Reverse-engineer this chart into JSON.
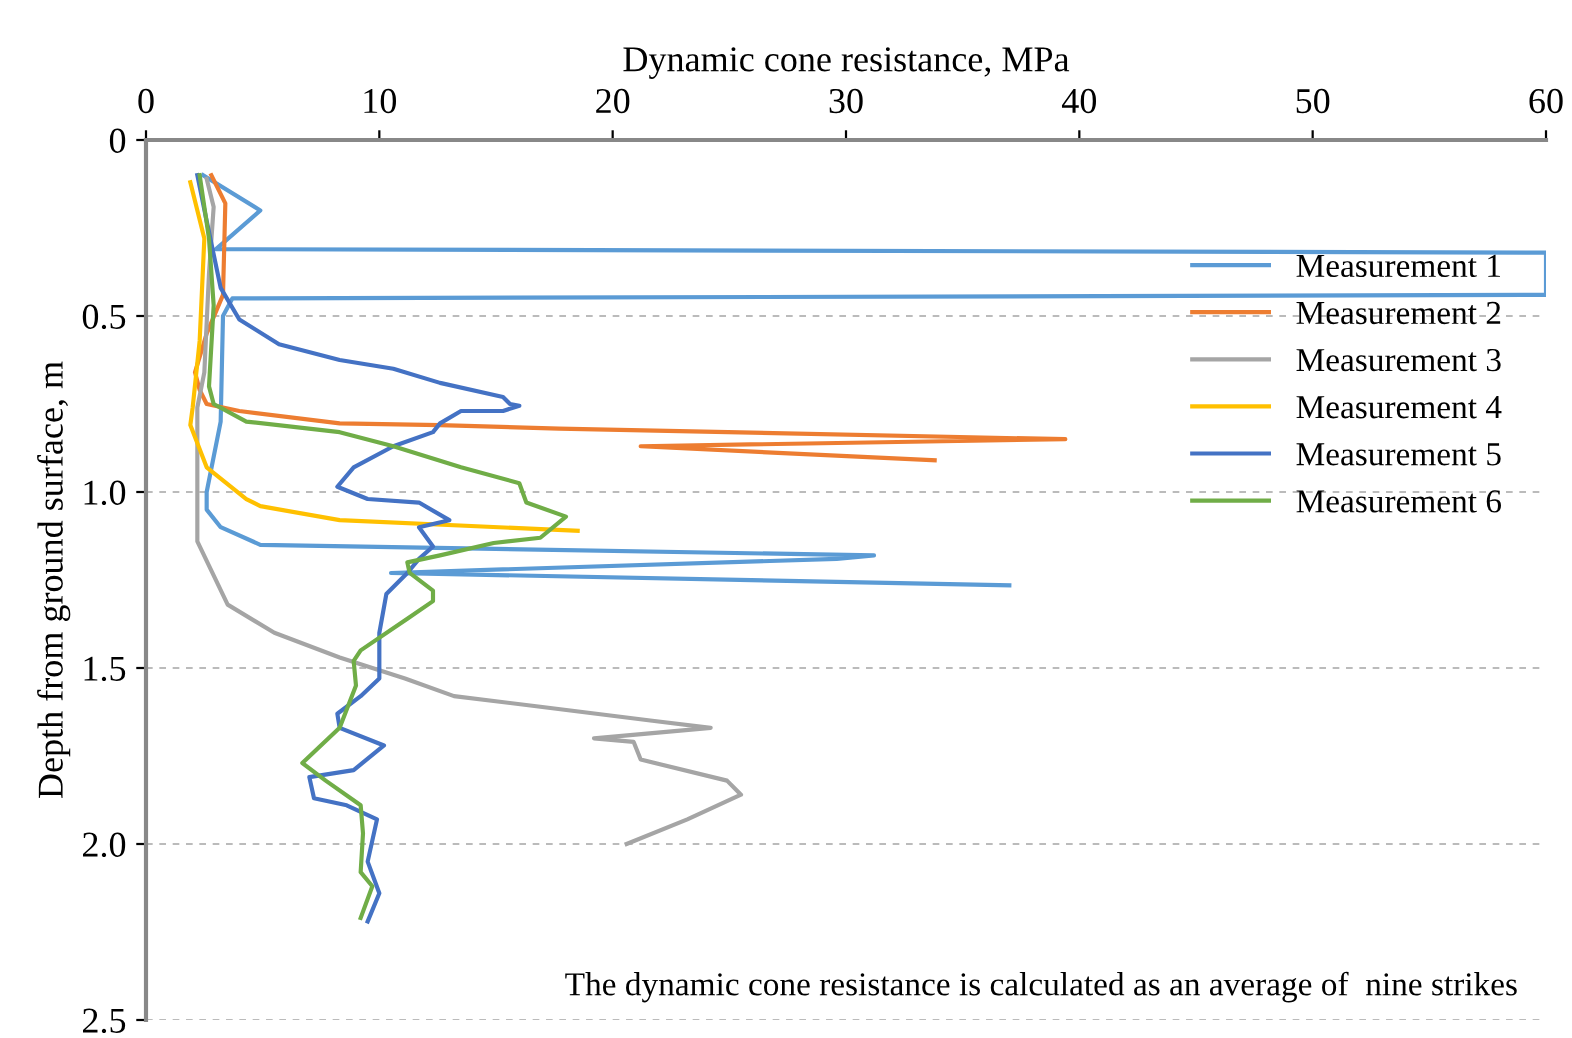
{
  "chart_data": {
    "type": "line",
    "xlabel": "Dynamic cone resistance, MPa",
    "ylabel": "Depth from ground surface, m",
    "xlim": [
      0,
      60
    ],
    "xticks": [
      0,
      10,
      20,
      30,
      40,
      50,
      60
    ],
    "ylim": [
      2.5,
      0
    ],
    "yticks": [
      0,
      {
        "value": 0.5,
        "label": "0.5"
      },
      {
        "value": 1,
        "label": "1.0"
      },
      {
        "value": 1.5,
        "label": "1.5"
      },
      {
        "value": 2,
        "label": "2.0"
      },
      {
        "value": 2.5,
        "label": "2.5"
      }
    ],
    "grid": "y",
    "legend": "right",
    "marker": "none",
    "line_style": "solid",
    "annotations": [
      "The dynamic cone resistance is calculated as an average of  nine strikes"
    ],
    "series": [
      {
        "name": "Measurement 1",
        "color": "#5b9bd5",
        "x": [
          2.45,
          4.9,
          3.0,
          60,
          60,
          3.7,
          3.3,
          3.2,
          2.6,
          2.6,
          3.2,
          4.9,
          31.2,
          29.6,
          10.5,
          37.0
        ],
        "values": [
          0.1,
          0.2,
          0.31,
          0.32,
          0.44,
          0.45,
          0.5,
          0.8,
          1.0,
          1.05,
          1.1,
          1.15,
          1.18,
          1.19,
          1.23,
          1.265
        ]
      },
      {
        "name": "Measurement 2",
        "color": "#ed7d31",
        "x": [
          2.8,
          3.4,
          3.3,
          2.6,
          2.1,
          2.3,
          2.6,
          4.0,
          8.3,
          12.6,
          17.7,
          39.4,
          21.2,
          33.8
        ],
        "values": [
          0.1,
          0.18,
          0.44,
          0.55,
          0.66,
          0.71,
          0.75,
          0.77,
          0.805,
          0.81,
          0.82,
          0.85,
          0.87,
          0.91
        ]
      },
      {
        "name": "Measurement 3",
        "color": "#a5a5a5",
        "x": [
          2.6,
          2.9,
          2.7,
          2.5,
          2.2,
          2.2,
          2.2,
          3.5,
          5.5,
          8.3,
          11.1,
          13.2,
          16.9,
          21.7,
          24.2,
          19.2,
          20.9,
          21.2,
          24.9,
          25.5,
          23.2,
          20.6
        ],
        "values": [
          0.11,
          0.19,
          0.38,
          0.66,
          0.76,
          0.91,
          1.14,
          1.32,
          1.4,
          1.47,
          1.53,
          1.58,
          1.61,
          1.65,
          1.67,
          1.7,
          1.71,
          1.76,
          1.82,
          1.86,
          1.93,
          2.0
        ]
      },
      {
        "name": "Measurement 4",
        "color": "#ffc000",
        "x": [
          1.9,
          2.5,
          2.3,
          2.0,
          1.9,
          2.6,
          4.3,
          4.9,
          8.3,
          18.5
        ],
        "values": [
          0.12,
          0.28,
          0.57,
          0.76,
          0.81,
          0.93,
          1.02,
          1.04,
          1.08,
          1.11
        ]
      },
      {
        "name": "Measurement 5",
        "color": "#4472c4",
        "x": [
          2.2,
          2.6,
          3.2,
          4.0,
          5.7,
          8.3,
          10.6,
          12.6,
          15.3,
          15.6,
          16.0,
          15.3,
          13.5,
          12.6,
          12.3,
          10.6,
          8.9,
          8.2,
          9.5,
          11.7,
          13.0,
          11.7,
          12.3,
          11.7,
          11.2,
          10.3,
          10.0,
          10.0,
          9.2,
          8.2,
          8.3,
          10.2,
          8.9,
          7.0,
          7.2,
          8.6,
          9.9,
          9.5,
          10.0,
          9.5
        ],
        "values": [
          0.1,
          0.23,
          0.42,
          0.51,
          0.58,
          0.625,
          0.65,
          0.69,
          0.73,
          0.75,
          0.755,
          0.77,
          0.77,
          0.805,
          0.83,
          0.87,
          0.93,
          0.985,
          1.02,
          1.03,
          1.08,
          1.1,
          1.155,
          1.19,
          1.23,
          1.29,
          1.4,
          1.53,
          1.58,
          1.63,
          1.67,
          1.72,
          1.79,
          1.81,
          1.87,
          1.89,
          1.93,
          2.05,
          2.14,
          2.22
        ]
      },
      {
        "name": "Measurement 6",
        "color": "#70ad47",
        "x": [
          2.3,
          2.7,
          2.9,
          2.7,
          2.9,
          4.3,
          8.3,
          10.6,
          13.5,
          16.0,
          16.3,
          18.0,
          16.9,
          14.9,
          12.6,
          11.2,
          11.3,
          12.3,
          12.3,
          11.2,
          9.2,
          8.9,
          9.0,
          8.3,
          6.7,
          7.7,
          9.2,
          9.3,
          9.2,
          9.7,
          9.2
        ],
        "values": [
          0.1,
          0.28,
          0.47,
          0.7,
          0.75,
          0.8,
          0.83,
          0.87,
          0.93,
          0.975,
          1.03,
          1.07,
          1.13,
          1.145,
          1.18,
          1.2,
          1.23,
          1.28,
          1.31,
          1.36,
          1.45,
          1.48,
          1.55,
          1.67,
          1.77,
          1.82,
          1.89,
          1.97,
          2.08,
          2.12,
          2.21
        ]
      }
    ]
  }
}
